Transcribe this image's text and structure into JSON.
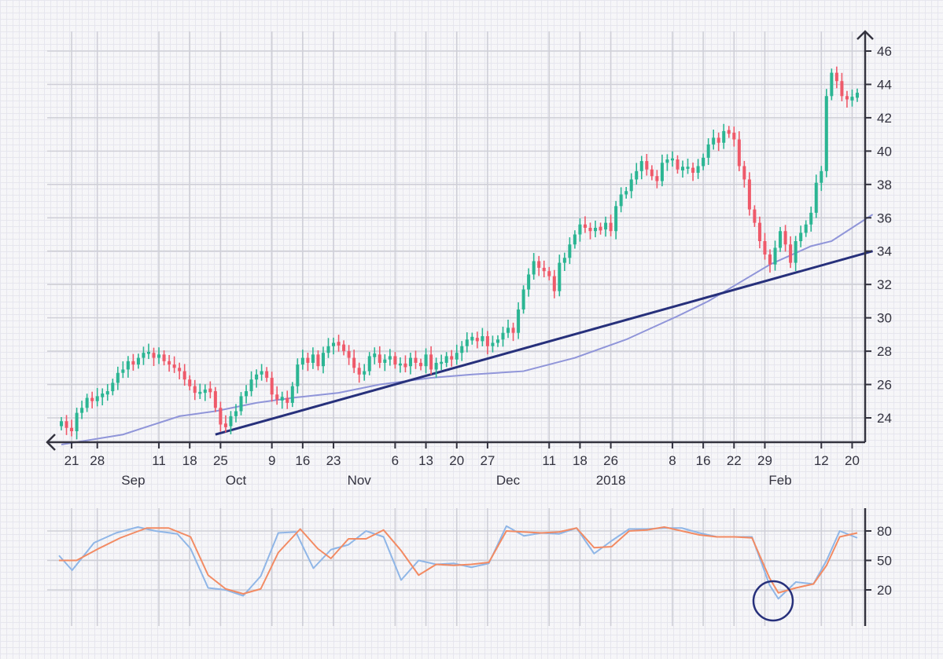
{
  "chart_data": [
    {
      "type": "candlestick",
      "title": "",
      "xlabel": "",
      "ylabel": "",
      "ylim": [
        22.5,
        46.5
      ],
      "y_ticks": [
        "24",
        "26",
        "28",
        "30",
        "32",
        "34",
        "36",
        "38",
        "40",
        "42",
        "44",
        "46"
      ],
      "x_tick_labels": [
        "21",
        "28",
        "11",
        "18",
        "25",
        "9",
        "16",
        "23",
        "6",
        "13",
        "20",
        "27",
        "11",
        "18",
        "26",
        "8",
        "16",
        "22",
        "29",
        "12",
        "20"
      ],
      "x_tick_index": [
        2,
        7,
        19,
        25,
        31,
        41,
        47,
        53,
        65,
        71,
        77,
        83,
        95,
        101,
        107,
        119,
        125,
        131,
        137,
        148,
        154
      ],
      "month_labels": [
        "Sep",
        "Oct",
        "Nov",
        "Dec",
        "2018",
        "Feb"
      ],
      "month_label_index": [
        14,
        34,
        58,
        87,
        107,
        140
      ],
      "colors": {
        "up": "#2bb592",
        "down": "#ef5a6a",
        "moving_average": "#8f95d8",
        "trend_line": "#27307a",
        "axis": "#333340"
      },
      "candles_approx": [
        23.8,
        23.4,
        23.2,
        24.3,
        24.6,
        25.2,
        25.0,
        25.3,
        25.4,
        25.6,
        26.1,
        26.7,
        26.9,
        27.4,
        27.2,
        27.6,
        27.9,
        27.9,
        27.6,
        27.8,
        27.4,
        27.2,
        27.0,
        26.8,
        26.3,
        25.9,
        25.5,
        25.5,
        25.7,
        25.6,
        24.6,
        23.6,
        23.5,
        24.1,
        24.4,
        25.3,
        25.6,
        26.3,
        26.6,
        26.8,
        26.4,
        25.4,
        25.1,
        25.2,
        24.9,
        25.9,
        27.2,
        27.6,
        27.3,
        27.8,
        27.1,
        27.9,
        28.3,
        28.5,
        28.4,
        28.0,
        27.6,
        27.0,
        26.6,
        26.8,
        27.7,
        27.8,
        27.3,
        27.5,
        27.7,
        27.2,
        27.2,
        27.1,
        27.6,
        27.3,
        27.1,
        27.8,
        26.9,
        27.3,
        27.3,
        27.7,
        27.5,
        27.9,
        28.3,
        28.7,
        28.8,
        28.6,
        28.9,
        28.3,
        28.5,
        28.7,
        29.1,
        29.4,
        29.1,
        30.5,
        31.7,
        32.6,
        33.4,
        33.0,
        32.8,
        32.5,
        31.6,
        33.3,
        33.6,
        34.4,
        35.0,
        35.6,
        35.4,
        35.2,
        35.4,
        35.3,
        35.7,
        35.2,
        36.7,
        37.4,
        37.6,
        38.3,
        38.8,
        39.4,
        38.9,
        38.5,
        38.2,
        39.3,
        39.5,
        39.5,
        38.9,
        39.0,
        39.0,
        38.7,
        39.1,
        39.6,
        40.4,
        40.8,
        40.5,
        41.2,
        41.1,
        40.7,
        39.1,
        38.3,
        36.5,
        35.7,
        34.6,
        33.8,
        33.2,
        34.2,
        35.2,
        34.4,
        33.3,
        34.6,
        35.1,
        35.6,
        36.3,
        38.1,
        38.8,
        43.3,
        44.7,
        44.2,
        43.3,
        43.1,
        43.2,
        43.5
      ],
      "moving_average": [
        [
          0,
          22.4
        ],
        [
          8,
          22.8
        ],
        [
          12,
          23.0
        ],
        [
          16,
          23.4
        ],
        [
          23,
          24.1
        ],
        [
          30,
          24.4
        ],
        [
          38,
          24.9
        ],
        [
          45,
          25.2
        ],
        [
          54,
          25.5
        ],
        [
          62,
          26.0
        ],
        [
          72,
          26.4
        ],
        [
          80,
          26.6
        ],
        [
          90,
          26.8
        ],
        [
          100,
          27.6
        ],
        [
          110,
          28.7
        ],
        [
          120,
          30.1
        ],
        [
          126,
          31.0
        ],
        [
          132,
          32.1
        ],
        [
          138,
          33.2
        ],
        [
          146,
          34.3
        ],
        [
          150,
          34.6
        ],
        [
          155,
          35.6
        ],
        [
          158,
          36.2
        ]
      ],
      "trend_line": [
        [
          30,
          23.0
        ],
        [
          158,
          34.0
        ]
      ]
    },
    {
      "type": "line",
      "title": "",
      "ylim": [
        0,
        100
      ],
      "y_ticks": [
        "20",
        "50",
        "80"
      ],
      "series": [
        {
          "color": "#8fb6e6",
          "values": [
            [
              0,
              55
            ],
            [
              3,
              40
            ],
            [
              8,
              68
            ],
            [
              13,
              78
            ],
            [
              18,
              84
            ],
            [
              22,
              80
            ],
            [
              27,
              77
            ],
            [
              30,
              62
            ],
            [
              34,
              22
            ],
            [
              38,
              20
            ],
            [
              42,
              14
            ],
            [
              46,
              34
            ],
            [
              50,
              78
            ],
            [
              54,
              79
            ],
            [
              58,
              42
            ],
            [
              62,
              61
            ],
            [
              66,
              66
            ],
            [
              70,
              80
            ],
            [
              74,
              74
            ],
            [
              78,
              30
            ],
            [
              82,
              50
            ],
            [
              86,
              46
            ],
            [
              90,
              47
            ],
            [
              94,
              43
            ],
            [
              98,
              47
            ],
            [
              102,
              85
            ],
            [
              106,
              75
            ],
            [
              110,
              78
            ],
            [
              114,
              77
            ],
            [
              118,
              83
            ],
            [
              122,
              57
            ],
            [
              126,
              70
            ],
            [
              130,
              82
            ],
            [
              134,
              82
            ],
            [
              138,
              83
            ],
            [
              142,
              83
            ],
            [
              146,
              78
            ],
            [
              150,
              74
            ],
            [
              154,
              74
            ],
            [
              158,
              74
            ],
            [
              162,
              25
            ],
            [
              164,
              11
            ],
            [
              168,
              28
            ],
            [
              172,
              26
            ],
            [
              175,
              50
            ],
            [
              178,
              80
            ],
            [
              182,
              73
            ]
          ]
        },
        {
          "color": "#f28b63",
          "values": [
            [
              0,
              50
            ],
            [
              4,
              50
            ],
            [
              9,
              62
            ],
            [
              14,
              73
            ],
            [
              20,
              83
            ],
            [
              25,
              83
            ],
            [
              30,
              74
            ],
            [
              34,
              35
            ],
            [
              38,
              21
            ],
            [
              42,
              16
            ],
            [
              46,
              21
            ],
            [
              50,
              58
            ],
            [
              55,
              82
            ],
            [
              59,
              62
            ],
            [
              62,
              52
            ],
            [
              66,
              72
            ],
            [
              70,
              72
            ],
            [
              74,
              81
            ],
            [
              78,
              60
            ],
            [
              82,
              35
            ],
            [
              86,
              46
            ],
            [
              90,
              45
            ],
            [
              94,
              46
            ],
            [
              98,
              48
            ],
            [
              102,
              80
            ],
            [
              106,
              79
            ],
            [
              110,
              78
            ],
            [
              114,
              79
            ],
            [
              118,
              83
            ],
            [
              122,
              63
            ],
            [
              126,
              64
            ],
            [
              130,
              80
            ],
            [
              134,
              81
            ],
            [
              138,
              84
            ],
            [
              142,
              80
            ],
            [
              146,
              76
            ],
            [
              150,
              74
            ],
            [
              154,
              74
            ],
            [
              158,
              73
            ],
            [
              162,
              32
            ],
            [
              164,
              17
            ],
            [
              168,
              22
            ],
            [
              172,
              26
            ],
            [
              175,
              45
            ],
            [
              178,
              74
            ],
            [
              182,
              78
            ]
          ]
        }
      ],
      "annotation": "circle"
    }
  ]
}
